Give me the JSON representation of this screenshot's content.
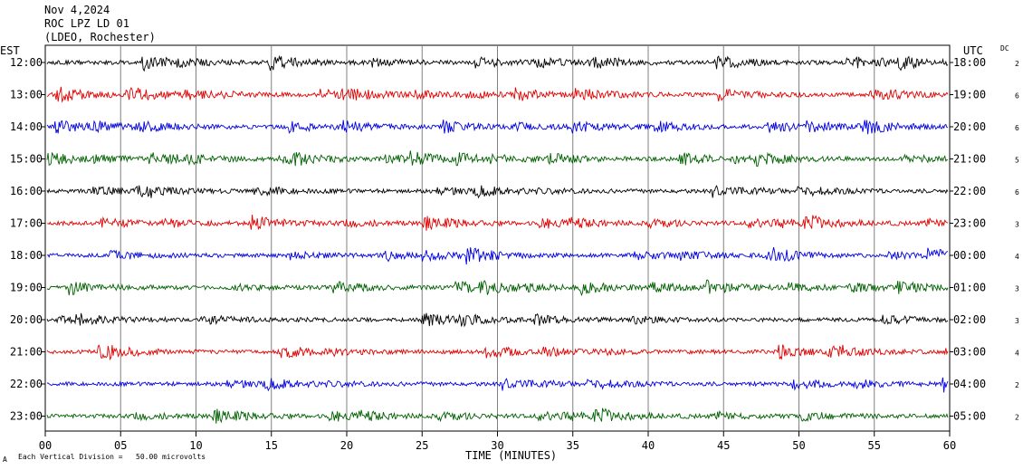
{
  "header": {
    "date": "Nov 4,2024",
    "station": "ROC LPZ LD 01",
    "network": "(LDEO, Rochester)"
  },
  "labels": {
    "left_zone": "EST",
    "right_zone": "UTC",
    "dc": "DC",
    "xlabel": "TIME (MINUTES)",
    "footer": "Each Vertical Division =   50.00 microvolts",
    "corner_mark": "A"
  },
  "colors": {
    "line1": "#000000",
    "line2": "#e00000",
    "line3": "#0000e0",
    "line4": "#006000",
    "grid": "#000000"
  },
  "chart_data": {
    "type": "line",
    "title": "",
    "xlabel": "TIME (MINUTES)",
    "ylabel": "",
    "xlim": [
      0,
      60
    ],
    "x_ticks": [
      "00",
      "05",
      "10",
      "15",
      "20",
      "25",
      "30",
      "35",
      "40",
      "45",
      "50",
      "55",
      "60"
    ],
    "grid": true,
    "rows": [
      {
        "est": "12:00",
        "utc": "18:00",
        "dc": "2",
        "color": "#000000"
      },
      {
        "est": "13:00",
        "utc": "19:00",
        "dc": "6",
        "color": "#e00000"
      },
      {
        "est": "14:00",
        "utc": "20:00",
        "dc": "6",
        "color": "#0000e0"
      },
      {
        "est": "15:00",
        "utc": "21:00",
        "dc": "5",
        "color": "#006000"
      },
      {
        "est": "16:00",
        "utc": "22:00",
        "dc": "6",
        "color": "#000000"
      },
      {
        "est": "17:00",
        "utc": "23:00",
        "dc": "3",
        "color": "#e00000"
      },
      {
        "est": "18:00",
        "utc": "00:00",
        "dc": "4",
        "color": "#0000e0"
      },
      {
        "est": "19:00",
        "utc": "01:00",
        "dc": "3",
        "color": "#006000"
      },
      {
        "est": "20:00",
        "utc": "02:00",
        "dc": "3",
        "color": "#000000"
      },
      {
        "est": "21:00",
        "utc": "03:00",
        "dc": "4",
        "color": "#e00000"
      },
      {
        "est": "22:00",
        "utc": "04:00",
        "dc": "2",
        "color": "#0000e0"
      },
      {
        "est": "23:00",
        "utc": "05:00",
        "dc": "2",
        "color": "#006000"
      }
    ]
  }
}
